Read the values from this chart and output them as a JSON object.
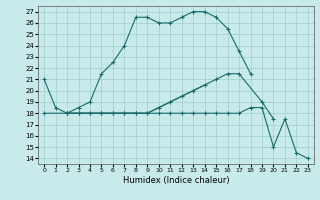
{
  "xlabel": "Humidex (Indice chaleur)",
  "background_color": "#c8eaea",
  "grid_color": "#9ecece",
  "line_color": "#1a6b6b",
  "xlim": [
    -0.5,
    23.5
  ],
  "ylim": [
    13.5,
    27.5
  ],
  "xticks": [
    0,
    1,
    2,
    3,
    4,
    5,
    6,
    7,
    8,
    9,
    10,
    11,
    12,
    13,
    14,
    15,
    16,
    17,
    18,
    19,
    20,
    21,
    22,
    23
  ],
  "yticks": [
    14,
    15,
    16,
    17,
    18,
    19,
    20,
    21,
    22,
    23,
    24,
    25,
    26,
    27
  ],
  "curve1_x": [
    0,
    1,
    2,
    3,
    4,
    5,
    6,
    7,
    8,
    9,
    10,
    11,
    12,
    13,
    14,
    15,
    16,
    17,
    18
  ],
  "curve1_y": [
    21.0,
    18.5,
    18.0,
    18.5,
    19.0,
    21.5,
    22.5,
    24.0,
    26.5,
    26.5,
    26.0,
    26.0,
    26.5,
    27.0,
    27.0,
    26.5,
    25.5,
    23.5,
    21.5
  ],
  "curve2_x": [
    0,
    2,
    3,
    4,
    5,
    6,
    7,
    8,
    9,
    10,
    11,
    12,
    13,
    14,
    15,
    16,
    17,
    19,
    20
  ],
  "curve2_y": [
    18.0,
    18.0,
    18.0,
    18.0,
    18.0,
    18.0,
    18.0,
    18.0,
    18.0,
    18.5,
    19.0,
    19.5,
    20.0,
    20.5,
    21.0,
    21.5,
    21.5,
    19.0,
    17.5
  ],
  "curve3_x": [
    2,
    3,
    4,
    5,
    6,
    7,
    8,
    9,
    10,
    11,
    12,
    13,
    14
  ],
  "curve3_y": [
    18.0,
    18.0,
    18.0,
    18.0,
    18.0,
    18.0,
    18.0,
    18.0,
    18.5,
    19.0,
    19.5,
    20.0,
    20.5
  ],
  "curve4_x": [
    2,
    3,
    4,
    5,
    6,
    7,
    8,
    9,
    10,
    11,
    12,
    13,
    14,
    15,
    16,
    17,
    18,
    19,
    20,
    21,
    22,
    23
  ],
  "curve4_y": [
    18.0,
    18.0,
    18.0,
    18.0,
    18.0,
    18.0,
    18.0,
    18.0,
    18.0,
    18.0,
    18.0,
    18.0,
    18.0,
    18.0,
    18.0,
    18.0,
    18.5,
    18.5,
    15.0,
    17.5,
    14.5,
    14.0
  ]
}
